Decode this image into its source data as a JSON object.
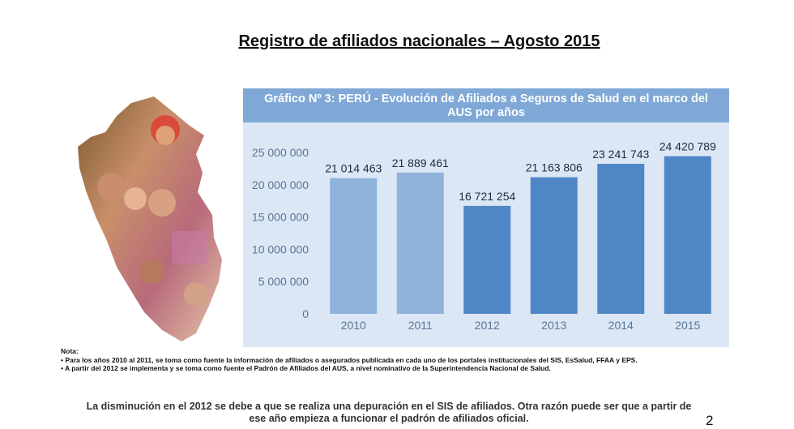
{
  "slide": {
    "title": "Registro de afiliados nacionales – Agosto 2015",
    "page_number": "2",
    "notes": {
      "heading": "Nota:",
      "items": [
        "• Para los años 2010 al 2011, se toma como fuente la información de afiliados o asegurados publicada en cada uno de los portales institucionales del SIS, EsSalud, FFAA y EPS.",
        "• A partir del 2012 se implementa y se toma como fuente el Padrón de Afiliados del AUS, a nivel nominativo de la Superintendencia Nacional de Salud."
      ]
    },
    "footer": "La disminución en el  2012  se debe a que se realiza  una depuración en el SIS de afiliados. Otra razón puede ser que a partir de ese año empieza a funcionar el padrón de afiliados oficial."
  },
  "chart_data": {
    "type": "bar",
    "title_line1": "Gráfico Nº 3:  PERÚ - Evolución de Afiliados a Seguros de Salud en el marco del",
    "title_line2": "AUS por años",
    "categories": [
      "2010",
      "2011",
      "2012",
      "2013",
      "2014",
      "2015"
    ],
    "values": [
      21014463,
      21889461,
      16721254,
      21163806,
      23241743,
      24420789
    ],
    "value_labels": [
      "21 014 463",
      "21 889 461",
      "16 721 254",
      "21 163 806",
      "23 241 743",
      "24 420 789"
    ],
    "y_ticks": [
      0,
      5000000,
      10000000,
      15000000,
      20000000,
      25000000
    ],
    "y_tick_labels": [
      "0",
      "5 000 000",
      "10 000 000",
      "15 000 000",
      "20 000 000",
      "25 000 000"
    ],
    "ylim": [
      0,
      25000000
    ],
    "grid": false,
    "colors": {
      "bar": "#4f86c6",
      "bar_light": "#8fb3dd",
      "header": "#7fa8d6",
      "panel": "#dbe7f4",
      "axis_text": "#5a7596"
    }
  }
}
